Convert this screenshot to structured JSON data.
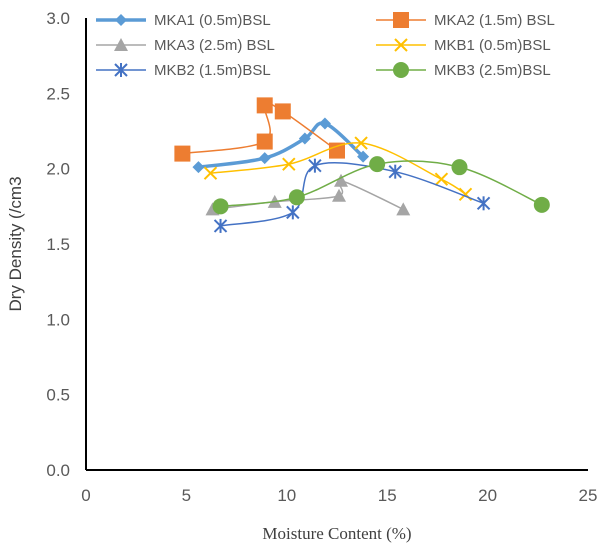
{
  "chart_data": {
    "type": "scatter",
    "xlabel": "Moisture Content (%)",
    "ylabel": "Dry Density (/cm3",
    "xlim": [
      0,
      25
    ],
    "ylim": [
      0,
      3.0
    ],
    "x_ticks": [
      "0",
      "5",
      "10",
      "15",
      "20",
      "25"
    ],
    "y_ticks": [
      "0.0",
      "0.5",
      "1.0",
      "1.5",
      "2.0",
      "2.5",
      "3.0"
    ],
    "grid": false,
    "legend_position": "top",
    "series": [
      {
        "name": "MKA1 (0.5m)BSL",
        "color": "#5b9bd5",
        "marker": "diamond",
        "line": "thick-smooth",
        "points": [
          [
            5.6,
            2.01
          ],
          [
            8.9,
            2.07
          ],
          [
            10.9,
            2.2
          ],
          [
            11.9,
            2.3
          ],
          [
            13.8,
            2.08
          ]
        ]
      },
      {
        "name": "MKA2 (1.5m) BSL",
        "color": "#ed7d31",
        "marker": "square",
        "line": "smooth",
        "points": [
          [
            4.8,
            2.1
          ],
          [
            8.9,
            2.18
          ],
          [
            8.9,
            2.42
          ],
          [
            9.8,
            2.38
          ],
          [
            12.5,
            2.12
          ]
        ]
      },
      {
        "name": "MKA3 (2.5m) BSL",
        "color": "#a5a5a5",
        "marker": "triangle",
        "line": "smooth",
        "points": [
          [
            6.3,
            1.73
          ],
          [
            9.4,
            1.78
          ],
          [
            12.6,
            1.82
          ],
          [
            12.7,
            1.92
          ],
          [
            15.8,
            1.73
          ]
        ]
      },
      {
        "name": "MKB1 (0.5m)BSL",
        "color": "#ffc000",
        "marker": "x",
        "line": "smooth",
        "points": [
          [
            6.2,
            1.97
          ],
          [
            10.1,
            2.03
          ],
          [
            13.7,
            2.17
          ],
          [
            17.7,
            1.93
          ],
          [
            18.9,
            1.83
          ]
        ]
      },
      {
        "name": "MKB2 (1.5m)BSL",
        "color": "#4472c4",
        "marker": "star",
        "line": "smooth",
        "points": [
          [
            6.7,
            1.62
          ],
          [
            10.3,
            1.71
          ],
          [
            11.4,
            2.02
          ],
          [
            15.4,
            1.98
          ],
          [
            19.8,
            1.77
          ]
        ]
      },
      {
        "name": "MKB3 (2.5m)BSL",
        "color": "#70ad47",
        "marker": "circle",
        "line": "smooth",
        "points": [
          [
            6.7,
            1.75
          ],
          [
            10.5,
            1.81
          ],
          [
            14.5,
            2.03
          ],
          [
            18.6,
            2.01
          ],
          [
            22.7,
            1.76
          ]
        ]
      }
    ]
  }
}
